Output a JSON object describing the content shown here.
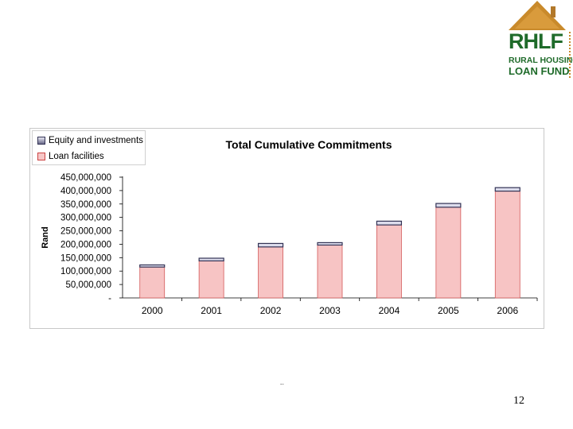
{
  "logo": {
    "word": "RHLF",
    "line1": "RURAL HOUSING",
    "line2": "LOAN FUND"
  },
  "footer": {
    "mark": "--",
    "page_number": "12"
  },
  "colors": {
    "loan_fill": "#f7c4c4",
    "loan_stroke": "#d45a5a",
    "equity_fill": "#dcdcec",
    "equity_stroke": "#333355",
    "logo_green": "#1f6b2a",
    "logo_roof": "#c98a2b"
  },
  "chart_data": {
    "type": "bar",
    "stacked": true,
    "title": "Total Cumulative Commitments",
    "xlabel": "",
    "ylabel": "Rand",
    "categories": [
      "2000",
      "2001",
      "2002",
      "2003",
      "2004",
      "2005",
      "2006"
    ],
    "series": [
      {
        "name": "Loan facilities",
        "values": [
          115000000,
          138000000,
          190000000,
          197000000,
          272000000,
          338000000,
          398000000
        ]
      },
      {
        "name": "Equity and investments",
        "values": [
          8000000,
          10000000,
          13000000,
          9000000,
          14000000,
          14000000,
          13000000
        ]
      }
    ],
    "legend_order": [
      "Equity and investments",
      "Loan facilities"
    ],
    "ylim": [
      0,
      450000000
    ],
    "yticks": [
      0,
      50000000,
      100000000,
      150000000,
      200000000,
      250000000,
      300000000,
      350000000,
      400000000,
      450000000
    ],
    "ytick_labels": [
      "-",
      "50,000,000",
      "100,000,000",
      "150,000,000",
      "200,000,000",
      "250,000,000",
      "300,000,000",
      "350,000,000",
      "400,000,000",
      "450,000,000"
    ],
    "legend_position": "top-left",
    "grid": false
  }
}
